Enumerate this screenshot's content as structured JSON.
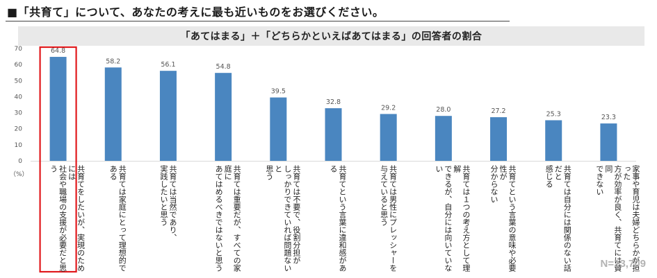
{
  "heading": "■「共育て」について、あなたの考えに最も近いものをお選びください。",
  "banner_title": "「あてはまる」＋「どちらかといえばあてはまる」の回答者の割合",
  "sample_size": "N=13,709",
  "colors": {
    "bar": "#4a86c0",
    "highlight_frame": "#e0191c",
    "grid": "#d9d9d9"
  },
  "chart_data": {
    "type": "bar",
    "unit_label": "（%）",
    "ylim": [
      0,
      70
    ],
    "yticks": [
      0,
      10,
      20,
      30,
      40,
      50,
      60,
      70
    ],
    "highlight_index": 0,
    "categories": [
      "共育てをしたいが、実現のためには\n社会や職場の支援が必要だと思う",
      "共育ては家庭にとって理想的である",
      "共育ては当然であり、\n実践したいと思う",
      "共育ては重要だが、すべての家庭に\nあてはめるべきではないと思う",
      "共育ては不要で、役割分担が\nしっかりできていれば問題ないと\n思う",
      "共育てという言葉に違和感がある",
      "共育ては男性にプレッシャーを\n与えていると思う",
      "共育ては１つの考え方として理解\nできるが、自分には向いていない",
      "共育てという言葉の意味や必要性が\n分からない",
      "共育ては自分には関係のない話だと\n感じる",
      "家事や育児は夫婦どちらかが担った\n方が効率が良く、共育てには賛同\nできない"
    ],
    "values": [
      64.8,
      58.2,
      56.1,
      54.8,
      39.5,
      32.8,
      29.2,
      28.0,
      27.2,
      25.3,
      23.3
    ],
    "value_labels": [
      "64.8",
      "58.2",
      "56.1",
      "54.8",
      "39.5",
      "32.8",
      "29.2",
      "28.0",
      "27.2",
      "25.3",
      "23.3"
    ]
  }
}
